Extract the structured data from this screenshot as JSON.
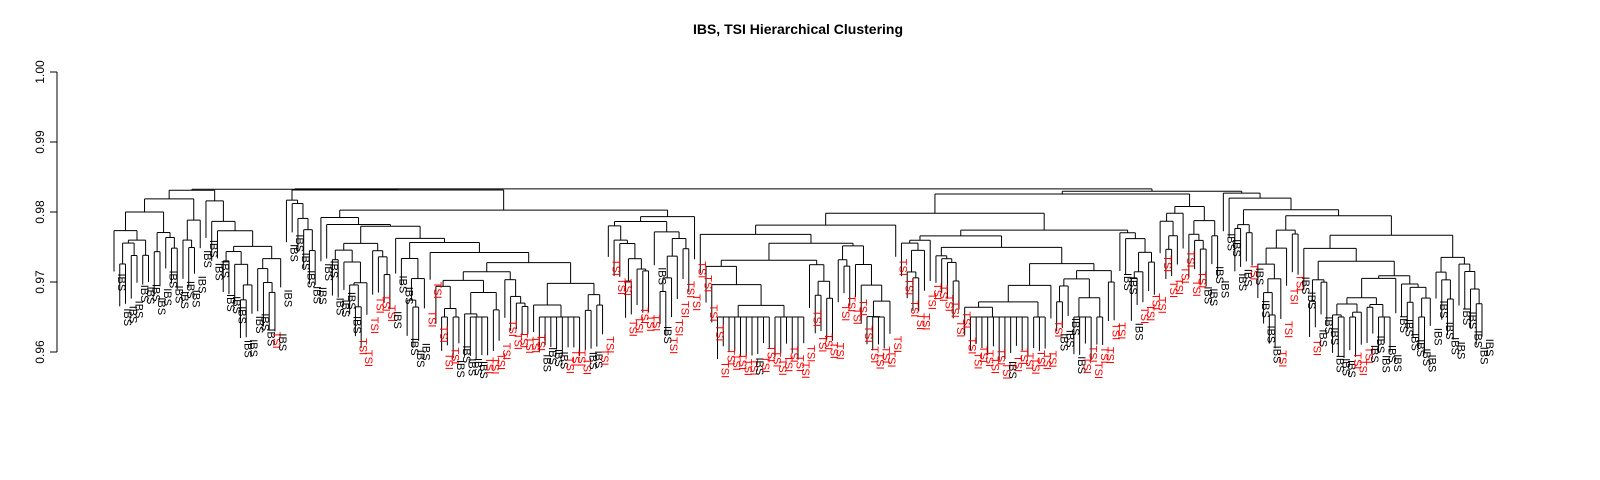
{
  "chart_data": {
    "type": "dendrogram",
    "title": "IBS, TSI Hierarchical Clustering",
    "xlabel": "",
    "ylabel": "",
    "ylim": [
      0.96,
      1.0
    ],
    "yticks": [
      0.96,
      0.97,
      0.98,
      0.99,
      1.0
    ],
    "ytick_labels": [
      "0.96",
      "0.97",
      "0.98",
      "0.99",
      "1.00"
    ],
    "series": [
      {
        "name": "IBS",
        "color": "#000000"
      },
      {
        "name": "TSI",
        "color": "#ff0000"
      }
    ],
    "root_height": 0.9833,
    "min_merge_height": 0.9645,
    "leaf_count": 240,
    "leaf_labels": [
      "IBS",
      "IBS",
      "IBS",
      "IBS",
      "IBS",
      "IBS",
      "IBS",
      "IBS",
      "IBS",
      "IBS",
      "IBS",
      "IBS",
      "IBS",
      "IBS",
      "IBS",
      "IBS",
      "IBS",
      "IBS",
      "IBS",
      "IBS",
      "IBS",
      "IBS",
      "IBS",
      "IBS",
      "IBS",
      "IBS",
      "IBS",
      "TSI",
      "IBS",
      "IBS",
      "IBS",
      "IBS",
      "IBS",
      "IBS",
      "IBS",
      "IBS",
      "IBS",
      "IBS",
      "IBS",
      "IBS",
      "IBS",
      "IBS",
      "TSI",
      "TSI",
      "TSI",
      "TSI",
      "TSI",
      "TSI",
      "IBS",
      "IBS",
      "IBS",
      "IBS",
      "IBS",
      "IBS",
      "TSI",
      "TSI",
      "TSI",
      "TSI",
      "TSI",
      "IBS",
      "IBS",
      "IBS",
      "IBS",
      "IBS",
      "TSI",
      "TSI",
      "TSI",
      "TSI",
      "TSI",
      "TSI",
      "TSI",
      "TSI",
      "TSI",
      "TSI",
      "IBS",
      "IBS",
      "IBS",
      "IBS",
      "TSI",
      "TSI",
      "TSI",
      "TSI",
      "IBS",
      "IBS",
      "TSI",
      "TSI",
      "TSI",
      "TSI",
      "TSI",
      "TSI",
      "TSI",
      "TSI",
      "TSI",
      "TSI",
      "IBS",
      "IBS",
      "TSI",
      "TSI",
      "TSI",
      "TSI",
      "TSI",
      "TSI",
      "TSI",
      "TSI",
      "TSI",
      "TSI",
      "TSI",
      "TSI",
      "TSI",
      "TSI",
      "TSI",
      "IBS",
      "TSI",
      "TSI",
      "TSI",
      "TSI",
      "TSI",
      "TSI",
      "TSI",
      "TSI",
      "TSI",
      "TSI",
      "TSI",
      "TSI",
      "TSI",
      "TSI",
      "TSI",
      "TSI",
      "TSI",
      "TSI",
      "TSI",
      "TSI",
      "TSI",
      "TSI",
      "TSI",
      "TSI",
      "TSI",
      "TSI",
      "TSI",
      "TSI",
      "TSI",
      "TSI",
      "TSI",
      "TSI",
      "TSI",
      "TSI",
      "TSI",
      "TSI",
      "TSI",
      "TSI",
      "TSI",
      "TSI",
      "TSI",
      "TSI",
      "TSI",
      "IBS",
      "TSI",
      "TSI",
      "TSI",
      "TSI",
      "TSI",
      "TSI",
      "TSI",
      "TSI",
      "IBS",
      "IBS",
      "IBS",
      "IBS",
      "TSI",
      "TSI",
      "TSI",
      "TSI",
      "TSI",
      "TSI",
      "TSI",
      "IBS",
      "IBS",
      "IBS",
      "TSI",
      "TSI",
      "TSI",
      "TSI",
      "TSI",
      "TSI",
      "TSI",
      "TSI",
      "TSI",
      "TSI",
      "TSI",
      "IBS",
      "IBS",
      "IBS",
      "IBS",
      "IBS",
      "IBS",
      "IBS",
      "IBS",
      "TSI",
      "IBS",
      "IBS",
      "IBS",
      "IBS",
      "TSI",
      "TSI",
      "TSI",
      "TSI",
      "IBS",
      "IBS",
      "TSI",
      "IBS",
      "IBS",
      "IBS",
      "IBS",
      "IBS",
      "IBS",
      "TSI",
      "TSI",
      "TSI",
      "IBS",
      "IBS",
      "IBS",
      "IBS",
      "IBS",
      "IBS",
      "IBS",
      "IBS",
      "IBS",
      "IBS",
      "IBS",
      "IBS",
      "IBS",
      "IBS",
      "IBS",
      "IBS",
      "IBS",
      "IBS",
      "IBS",
      "IBS",
      "IBS"
    ]
  }
}
